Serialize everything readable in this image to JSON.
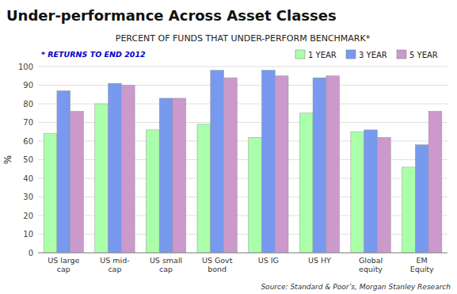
{
  "chart_data": {
    "type": "bar",
    "title": "Under-performance Across Asset Classes",
    "subtitle": "PERCENT OF FUNDS THAT UNDER-PERFORM BENCHMARK*",
    "note": "* RETURNS TO END 2012",
    "source": "Source: Standard & Poor’s, Morgan Stanley Research",
    "ylabel": "%",
    "categories": [
      "US large\ncap",
      "US mid-\ncap",
      "US small\ncap",
      "US Govt\nbond",
      "US IG",
      "US HY",
      "Global\nequity",
      "EM\nEquity"
    ],
    "series": [
      {
        "name": "1 YEAR",
        "color": "#aaffaa",
        "values": [
          64,
          80,
          66,
          69,
          62,
          75,
          65,
          46
        ]
      },
      {
        "name": "3 YEAR",
        "color": "#7799ee",
        "values": [
          87,
          91,
          83,
          98,
          98,
          94,
          66,
          58
        ]
      },
      {
        "name": "5 YEAR",
        "color": "#cc99cc",
        "values": [
          76,
          90,
          83,
          94,
          95,
          95,
          62,
          76
        ]
      }
    ],
    "ylim": [
      0,
      100
    ],
    "yticks": [
      0,
      10,
      20,
      30,
      40,
      50,
      60,
      70,
      80,
      90,
      100
    ],
    "grid": true,
    "legend": "upper right"
  }
}
